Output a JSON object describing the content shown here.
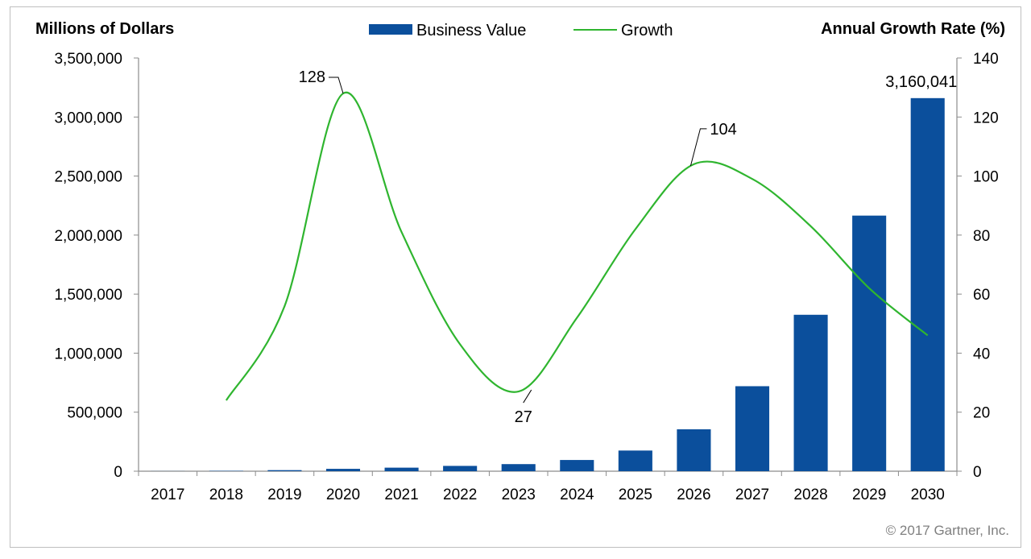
{
  "chart_data": {
    "type": "bar",
    "categories": [
      "2017",
      "2018",
      "2019",
      "2020",
      "2021",
      "2022",
      "2023",
      "2024",
      "2025",
      "2026",
      "2027",
      "2028",
      "2029",
      "2030"
    ],
    "series": [
      {
        "name": "Business Value",
        "type": "bar",
        "axis": "left",
        "color": "#0b4f9c",
        "values": [
          800,
          3000,
          9000,
          20000,
          30000,
          45000,
          60000,
          95000,
          175000,
          355000,
          720000,
          1325000,
          2165000,
          3160041
        ]
      },
      {
        "name": "Growth",
        "type": "line",
        "axis": "right",
        "color": "#2fb52f",
        "values": [
          null,
          24,
          56,
          128,
          81,
          43,
          27,
          52,
          82,
          104,
          99,
          83,
          62,
          46
        ]
      }
    ],
    "ylabel": "Millions of Dollars",
    "y2label": "Annual Growth Rate (%)",
    "ylim": [
      0,
      3500000
    ],
    "y2lim": [
      0,
      140
    ],
    "yticks": [
      "0",
      "500,000",
      "1,000,000",
      "1,500,000",
      "2,000,000",
      "2,500,000",
      "3,000,000",
      "3,500,000"
    ],
    "y2ticks": [
      "0",
      "20",
      "40",
      "60",
      "80",
      "100",
      "120",
      "140"
    ],
    "legend_position": "top-center",
    "grid": false,
    "annotations": {
      "peak_2020": "128",
      "trough_2023": "27",
      "peak_2026": "104",
      "bar_2030": "3,160,041"
    }
  },
  "copyright": "© 2017 Gartner, Inc."
}
